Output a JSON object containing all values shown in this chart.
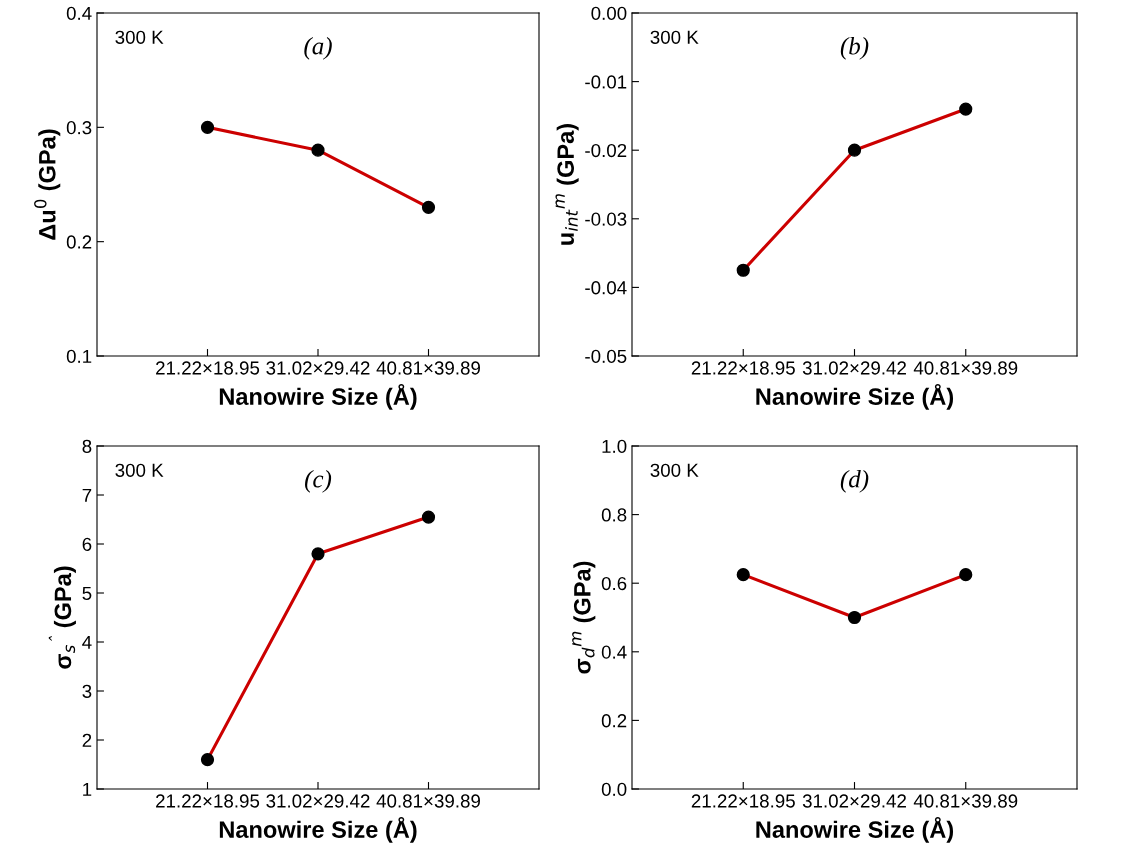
{
  "chart_data": [
    {
      "type": "line",
      "categories": [
        "21.22×18.95",
        "31.02×29.42",
        "40.81×39.89"
      ],
      "xlabel": "Nanowire Size (Å)",
      "ylabel": "Δu$^{0}$ (GPa)",
      "series": [
        {
          "color": "#cc0000",
          "values": [
            0.3,
            0.28,
            0.23
          ]
        }
      ],
      "ylim": [
        0.1,
        0.4
      ],
      "yticks": [
        0.1,
        0.2,
        0.3,
        0.4
      ],
      "marker": "circle",
      "grid": false,
      "legend": false,
      "annotations": [
        "300 K",
        "(a)"
      ]
    },
    {
      "type": "line",
      "categories": [
        "21.22×18.95",
        "31.02×29.42",
        "40.81×39.89"
      ],
      "xlabel": "Nanowire Size (Å)",
      "ylabel": "u$_{int}$$^{m}$ (GPa)",
      "series": [
        {
          "color": "#cc0000",
          "values": [
            -0.0375,
            -0.02,
            -0.014
          ]
        }
      ],
      "ylim": [
        -0.05,
        0.0
      ],
      "yticks": [
        {
          "value": -0.05,
          "label": "-0.05"
        },
        {
          "value": -0.04,
          "label": "-0.04"
        },
        {
          "value": -0.03,
          "label": "-0.03"
        },
        {
          "value": -0.02,
          "label": "-0.02"
        },
        {
          "value": -0.01,
          "label": "-0.01"
        },
        {
          "value": 0.0,
          "label": "0.00"
        }
      ],
      "marker": "circle",
      "grid": false,
      "legend": false,
      "annotations": [
        "300 K",
        "(b)"
      ]
    },
    {
      "type": "line",
      "categories": [
        "21.22×18.95",
        "31.02×29.42",
        "40.81×39.89"
      ],
      "xlabel": "Nanowire Size (Å)",
      "ylabel": "σ$_{s}$$^{ˆ}$ (GPa)",
      "series": [
        {
          "color": "#cc0000",
          "values": [
            1.6,
            5.8,
            6.55
          ]
        }
      ],
      "ylim": [
        1,
        8
      ],
      "yticks": [
        1,
        2,
        3,
        4,
        5,
        6,
        7,
        8
      ],
      "marker": "circle",
      "grid": false,
      "legend": false,
      "annotations": [
        "300 K",
        "(c)"
      ]
    },
    {
      "type": "line",
      "categories": [
        "21.22×18.95",
        "31.02×29.42",
        "40.81×39.89"
      ],
      "xlabel": "Nanowire Size (Å)",
      "ylabel": "σ$_{d}$$^{m}$ (GPa)",
      "series": [
        {
          "color": "#cc0000",
          "values": [
            0.625,
            0.5,
            0.625
          ]
        }
      ],
      "ylim": [
        0.0,
        1.0
      ],
      "yticks": [
        {
          "value": 0.0,
          "label": "0.0"
        },
        {
          "value": 0.2,
          "label": "0.2"
        },
        {
          "value": 0.4,
          "label": "0.4"
        },
        {
          "value": 0.6,
          "label": "0.6"
        },
        {
          "value": 0.8,
          "label": "0.8"
        },
        {
          "value": 1.0,
          "label": "1.0"
        }
      ],
      "marker": "circle",
      "grid": false,
      "legend": false,
      "annotations": [
        "300 K",
        "(d)"
      ]
    }
  ]
}
